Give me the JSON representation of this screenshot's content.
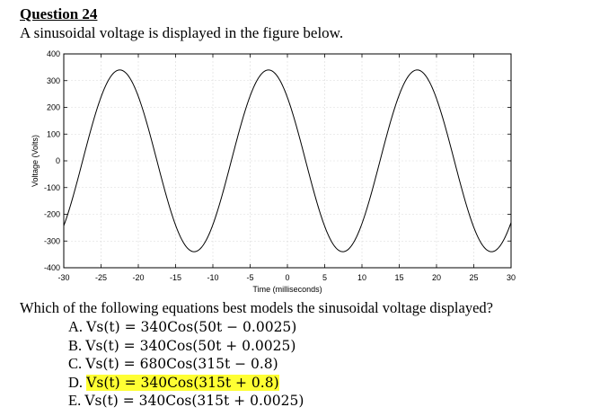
{
  "question": {
    "title": "Question 24",
    "prompt": "A sinusoidal voltage is displayed in the figure below.",
    "ask": "Which of the following equations best models the sinusoidal voltage displayed?",
    "options": [
      {
        "letter": "A.",
        "equation": "Vs(t) = 340Cos(50t − 0.0025)",
        "highlighted": false
      },
      {
        "letter": "B.",
        "equation": "Vs(t) = 340Cos(50t + 0.0025)",
        "highlighted": false
      },
      {
        "letter": "C.",
        "equation": "Vs(t) = 680Cos(315t − 0.8)",
        "highlighted": false
      },
      {
        "letter": "D.",
        "equation": "Vs(t) = 340Cos(315t + 0.8)",
        "highlighted": true
      },
      {
        "letter": "E.",
        "equation": "Vs(t) = 340Cos(315t + 0.0025)",
        "highlighted": false
      }
    ],
    "highlight_color": "#ffff33"
  },
  "chart_data": {
    "type": "line",
    "xlabel": "Time (milliseconds)",
    "ylabel": "Voltage (Volts)",
    "xlim": [
      -30,
      30
    ],
    "ylim": [
      -400,
      400
    ],
    "xticks": [
      -30,
      -25,
      -20,
      -15,
      -10,
      -5,
      0,
      5,
      10,
      15,
      20,
      25,
      30
    ],
    "yticks": [
      -400,
      -300,
      -200,
      -100,
      0,
      100,
      200,
      300,
      400
    ],
    "grid": true,
    "series": [
      {
        "amplitude": 340,
        "angular_frequency_rad_per_s": 315,
        "phase_rad": 0.8,
        "peaks_ms": [
          -22.5,
          -2.5,
          17.5
        ],
        "troughs_ms": [
          -12.5,
          7.5,
          27.5
        ],
        "color": "#000000"
      }
    ]
  }
}
